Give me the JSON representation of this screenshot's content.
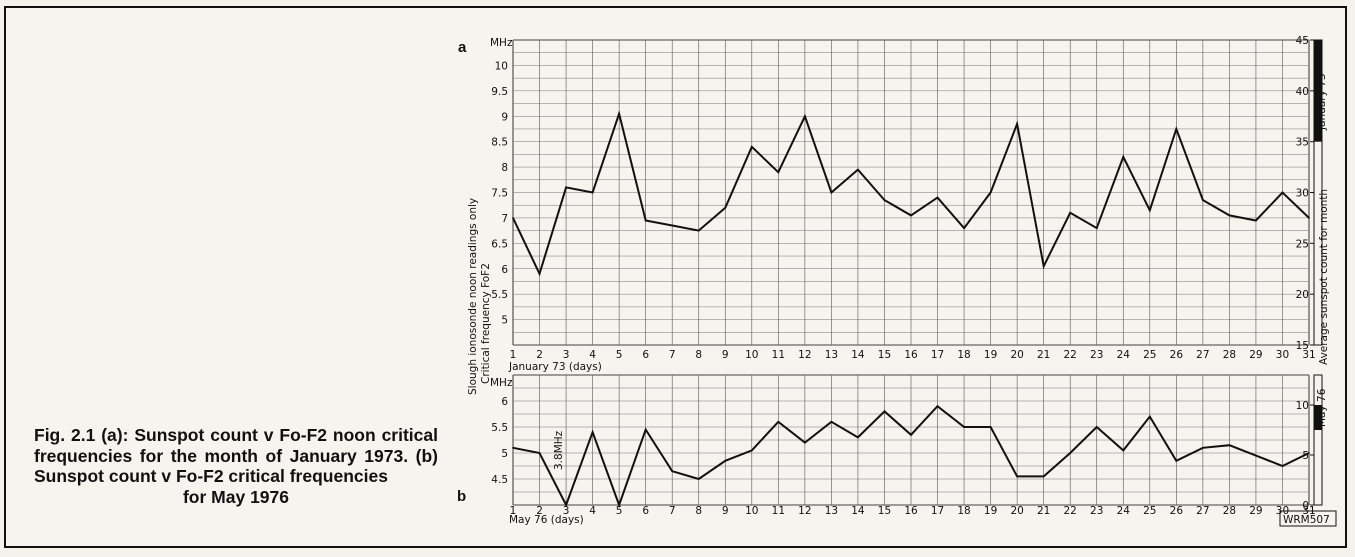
{
  "caption": {
    "line1": "Fig. 2.1 (a): Sunspot count v Fo-F2 noon critical frequencies for the month of January 1973. (b) Sunspot count v Fo-F2 critical frequencies",
    "line2": "for May 1976"
  },
  "chart_data": [
    {
      "type": "line",
      "panel_label": "a",
      "x": [
        1,
        2,
        3,
        4,
        5,
        6,
        7,
        8,
        9,
        10,
        11,
        12,
        13,
        14,
        15,
        16,
        17,
        18,
        19,
        20,
        21,
        22,
        23,
        24,
        25,
        26,
        27,
        28,
        29,
        30,
        31
      ],
      "y": [
        7.0,
        5.9,
        7.6,
        7.5,
        9.05,
        6.95,
        6.85,
        6.75,
        7.2,
        8.4,
        7.9,
        9.0,
        7.5,
        7.95,
        7.35,
        7.05,
        7.4,
        6.8,
        7.5,
        8.85,
        6.05,
        7.1,
        6.8,
        8.2,
        7.15,
        8.75,
        7.35,
        7.05,
        6.95,
        7.5,
        7.0
      ],
      "xlabel": "January 73 (days)",
      "ylabel_line1": "Slough ionosonde  noon readings only",
      "ylabel_line2": "Critical frequency FoF2",
      "yunit": "MHz",
      "yticks": [
        "5",
        "5.5",
        "6",
        "6.5",
        "7",
        "7.5",
        "8",
        "8.5",
        "9",
        "9.5",
        "10"
      ],
      "ylim": [
        4.5,
        10.5
      ],
      "sunspot_axis_label": "Average sunspot count for month",
      "sunspot_ticks": [
        "15",
        "20",
        "25",
        "30",
        "35",
        "40",
        "45"
      ],
      "sunspot_range": [
        15,
        45
      ],
      "sunspot_count": [
        35,
        45
      ],
      "sunspot_bar_label": "January 73",
      "grid": true
    },
    {
      "type": "line",
      "panel_label": "b",
      "x": [
        1,
        2,
        3,
        4,
        5,
        6,
        7,
        8,
        9,
        10,
        11,
        12,
        13,
        14,
        15,
        16,
        17,
        18,
        19,
        20,
        21,
        22,
        23,
        24,
        25,
        26,
        27,
        28,
        29,
        30,
        31
      ],
      "y": [
        5.1,
        5.0,
        4.0,
        5.4,
        4.0,
        5.45,
        4.65,
        4.5,
        4.85,
        5.05,
        5.6,
        5.2,
        5.6,
        5.3,
        5.8,
        5.35,
        5.9,
        5.5,
        5.5,
        4.55,
        4.55,
        5.0,
        5.5,
        5.05,
        5.7,
        4.85,
        5.1,
        5.15,
        4.95,
        4.75,
        5.0
      ],
      "xlabel": "May 76 (days)",
      "yunit": "MHz",
      "yticks": [
        "4.5",
        "5",
        "5.5",
        "6"
      ],
      "ylim": [
        4.0,
        6.5
      ],
      "annotation": "3.8MHz",
      "sunspot_ticks": [
        "0",
        "5",
        "10"
      ],
      "sunspot_range": [
        0,
        13
      ],
      "sunspot_count": [
        7.5,
        10
      ],
      "sunspot_bar_label": "May 76",
      "grid": true
    }
  ],
  "code": "WRM507"
}
